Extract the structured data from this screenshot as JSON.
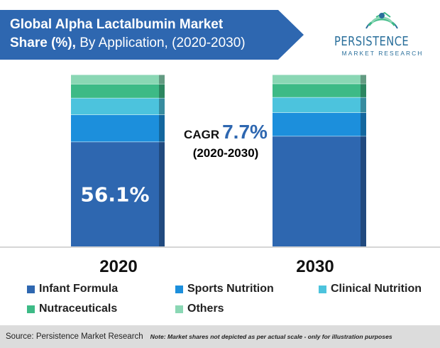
{
  "title": {
    "line1": "Global Alpha Lactalbumin Market",
    "line2_bold": "Share (%),",
    "line2_rest": " By Application, (2020-2030)"
  },
  "logo": {
    "name": "PERSISTENCE",
    "sub": "MARKET RESEARCH"
  },
  "cagr": {
    "label": "CAGR",
    "value": "7.7%",
    "period": "(2020-2030)"
  },
  "chart_data": {
    "type": "bar",
    "stacked": true,
    "categories": [
      "2020",
      "2030"
    ],
    "series": [
      {
        "name": "Infant Formula",
        "color": "#2e67b0",
        "values": [
          56.1,
          61.0
        ]
      },
      {
        "name": "Sports Nutrition",
        "color": "#1c8fdc",
        "values": [
          14.5,
          13.0
        ]
      },
      {
        "name": "Clinical Nutrition",
        "color": "#4cc3dd",
        "values": [
          9.0,
          8.5
        ]
      },
      {
        "name": "Nutraceuticals",
        "color": "#3dba86",
        "values": [
          7.5,
          7.5
        ]
      },
      {
        "name": "Others",
        "color": "#8ad7b4",
        "values": [
          5.0,
          5.0
        ]
      }
    ],
    "data_labels": [
      {
        "category": "2020",
        "series": "Infant Formula",
        "text": "56.1%"
      }
    ],
    "ylim": [
      0,
      100
    ],
    "grid": false,
    "legend_position": "bottom"
  },
  "source": {
    "text": "Source: Persistence Market Research",
    "note": "Note: Market shares not depicted as per actual scale - only for illustration purposes"
  },
  "colors": {
    "title_banner": "#2e67b0",
    "source_bar": "#dcdcdc"
  }
}
